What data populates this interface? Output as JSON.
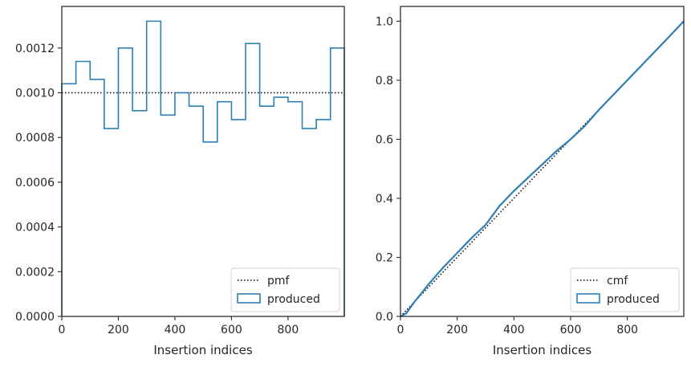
{
  "chart_data": [
    {
      "type": "step",
      "xlabel": "Insertion indices",
      "ylabel": "",
      "xlim": [
        0,
        999
      ],
      "ylim": [
        0,
        0.001386
      ],
      "xticks": [
        0,
        200,
        400,
        600,
        800
      ],
      "xtick_labels": [
        "0",
        "200",
        "400",
        "600",
        "800"
      ],
      "yticks": [
        0,
        0.0002,
        0.0004,
        0.0006,
        0.0008,
        0.001,
        0.0012
      ],
      "ytick_labels": [
        "0.0000",
        "0.0002",
        "0.0004",
        "0.0006",
        "0.0008",
        "0.0010",
        "0.0012"
      ],
      "legend_position": "lower-right",
      "series": [
        {
          "name": "pmf",
          "style": "dotted",
          "color": "#000000",
          "x": [
            0,
            999
          ],
          "y": [
            0.001,
            0.001
          ]
        },
        {
          "name": "produced",
          "style": "step-histogram",
          "color": "#2e7fb5",
          "bin_edges": [
            0,
            50,
            100,
            150,
            200,
            250,
            300,
            350,
            400,
            450,
            500,
            550,
            600,
            650,
            700,
            750,
            800,
            850,
            900,
            950,
            999
          ],
          "values": [
            0.00104,
            0.00114,
            0.00106,
            0.00084,
            0.0012,
            0.00092,
            0.00132,
            0.0009,
            0.001,
            0.00094,
            0.00078,
            0.00096,
            0.00088,
            0.00122,
            0.00094,
            0.00098,
            0.00096,
            0.00084,
            0.00088,
            0.0012
          ]
        }
      ]
    },
    {
      "type": "line",
      "xlabel": "Insertion indices",
      "ylabel": "",
      "xlim": [
        0,
        999
      ],
      "ylim": [
        0,
        1.05
      ],
      "xticks": [
        0,
        200,
        400,
        600,
        800
      ],
      "xtick_labels": [
        "0",
        "200",
        "400",
        "600",
        "800"
      ],
      "yticks": [
        0,
        0.2,
        0.4,
        0.6,
        0.8,
        1.0
      ],
      "ytick_labels": [
        "0.0",
        "0.2",
        "0.4",
        "0.6",
        "0.8",
        "1.0"
      ],
      "legend_position": "lower-right",
      "series": [
        {
          "name": "cmf",
          "style": "dotted",
          "color": "#000000",
          "x": [
            0,
            999
          ],
          "y": [
            0,
            1.0
          ]
        },
        {
          "name": "produced",
          "style": "solid",
          "color": "#2e7fb5",
          "x": [
            0,
            20,
            50,
            100,
            150,
            200,
            250,
            300,
            350,
            400,
            450,
            500,
            550,
            600,
            650,
            700,
            750,
            800,
            850,
            900,
            950,
            999
          ],
          "y": [
            0,
            0.01,
            0.05,
            0.11,
            0.165,
            0.215,
            0.265,
            0.31,
            0.375,
            0.425,
            0.47,
            0.515,
            0.56,
            0.6,
            0.645,
            0.7,
            0.75,
            0.8,
            0.85,
            0.9,
            0.95,
            1.0
          ]
        }
      ]
    }
  ]
}
